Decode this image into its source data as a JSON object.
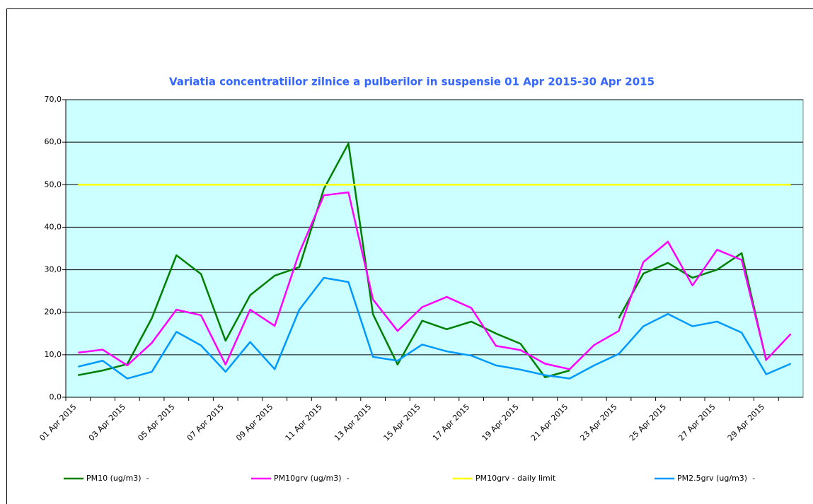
{
  "chart_data": {
    "type": "line",
    "title": "Variatia concentratiilor zilnice a pulberilor in suspensie 01 Apr 2015-30 Apr 2015",
    "categories": [
      "01 Apr 2015",
      null,
      "03 Apr 2015",
      null,
      "05 Apr 2015",
      null,
      "07 Apr 2015",
      null,
      "09 Apr 2015",
      null,
      "11 Apr 2015",
      null,
      "13 Apr 2015",
      null,
      "15 Apr 2015",
      null,
      "17 Apr 2015",
      null,
      "19 Apr 2015",
      null,
      "21 Apr 2015",
      null,
      "23 Apr 2015",
      null,
      "25 Apr 2015",
      null,
      "27 Apr 2015",
      null,
      "29 Apr 2015",
      null
    ],
    "series": [
      {
        "name": "PM10 (ug/m3)  -",
        "color": "#008000",
        "values": [
          5.2,
          6.3,
          7.8,
          18.6,
          33.4,
          29.0,
          13.3,
          24.0,
          28.6,
          30.6,
          49.0,
          59.7,
          19.5,
          7.7,
          18.0,
          16.0,
          17.8,
          15.0,
          12.6,
          4.7,
          6.3,
          null,
          18.6,
          29.1,
          31.6,
          28.1,
          30.0,
          33.9,
          8.6,
          null
        ]
      },
      {
        "name": "PM10grv (ug/m3)  -",
        "color": "#ff00ff",
        "values": [
          10.5,
          11.2,
          7.5,
          12.8,
          20.6,
          19.3,
          7.7,
          20.6,
          16.8,
          34.0,
          47.5,
          48.2,
          23.0,
          15.6,
          21.2,
          23.6,
          21.0,
          12.1,
          11.1,
          7.9,
          6.6,
          12.3,
          15.6,
          31.8,
          36.6,
          26.3,
          34.7,
          32.3,
          8.8,
          14.9
        ]
      },
      {
        "name": "PM10grv - daily limit",
        "color": "#ffff00",
        "values": [
          50,
          50,
          50,
          50,
          50,
          50,
          50,
          50,
          50,
          50,
          50,
          50,
          50,
          50,
          50,
          50,
          50,
          50,
          50,
          50,
          50,
          50,
          50,
          50,
          50,
          50,
          50,
          50,
          50,
          50
        ]
      },
      {
        "name": "PM2.5grv (ug/m3)  -",
        "color": "#0099ff",
        "values": [
          7.2,
          8.6,
          4.4,
          6.0,
          15.4,
          12.2,
          6.0,
          13.0,
          6.6,
          20.6,
          28.1,
          27.1,
          9.5,
          8.6,
          12.4,
          10.8,
          9.8,
          7.5,
          6.5,
          5.2,
          4.4,
          7.5,
          10.2,
          16.7,
          19.6,
          16.7,
          17.8,
          15.2,
          5.4,
          7.9
        ]
      }
    ],
    "ylim": [
      0,
      70
    ],
    "yticks": [
      {
        "value": 0,
        "label": "0,0"
      },
      {
        "value": 10,
        "label": "10,0"
      },
      {
        "value": 20,
        "label": "20,0"
      },
      {
        "value": 30,
        "label": "30,0"
      },
      {
        "value": 40,
        "label": "40,0"
      },
      {
        "value": 50,
        "label": "50,0"
      },
      {
        "value": 60,
        "label": "60,0"
      },
      {
        "value": 70,
        "label": "70,0"
      }
    ],
    "grid": true,
    "legend": "bottom",
    "plot_background": "#ccffff"
  }
}
